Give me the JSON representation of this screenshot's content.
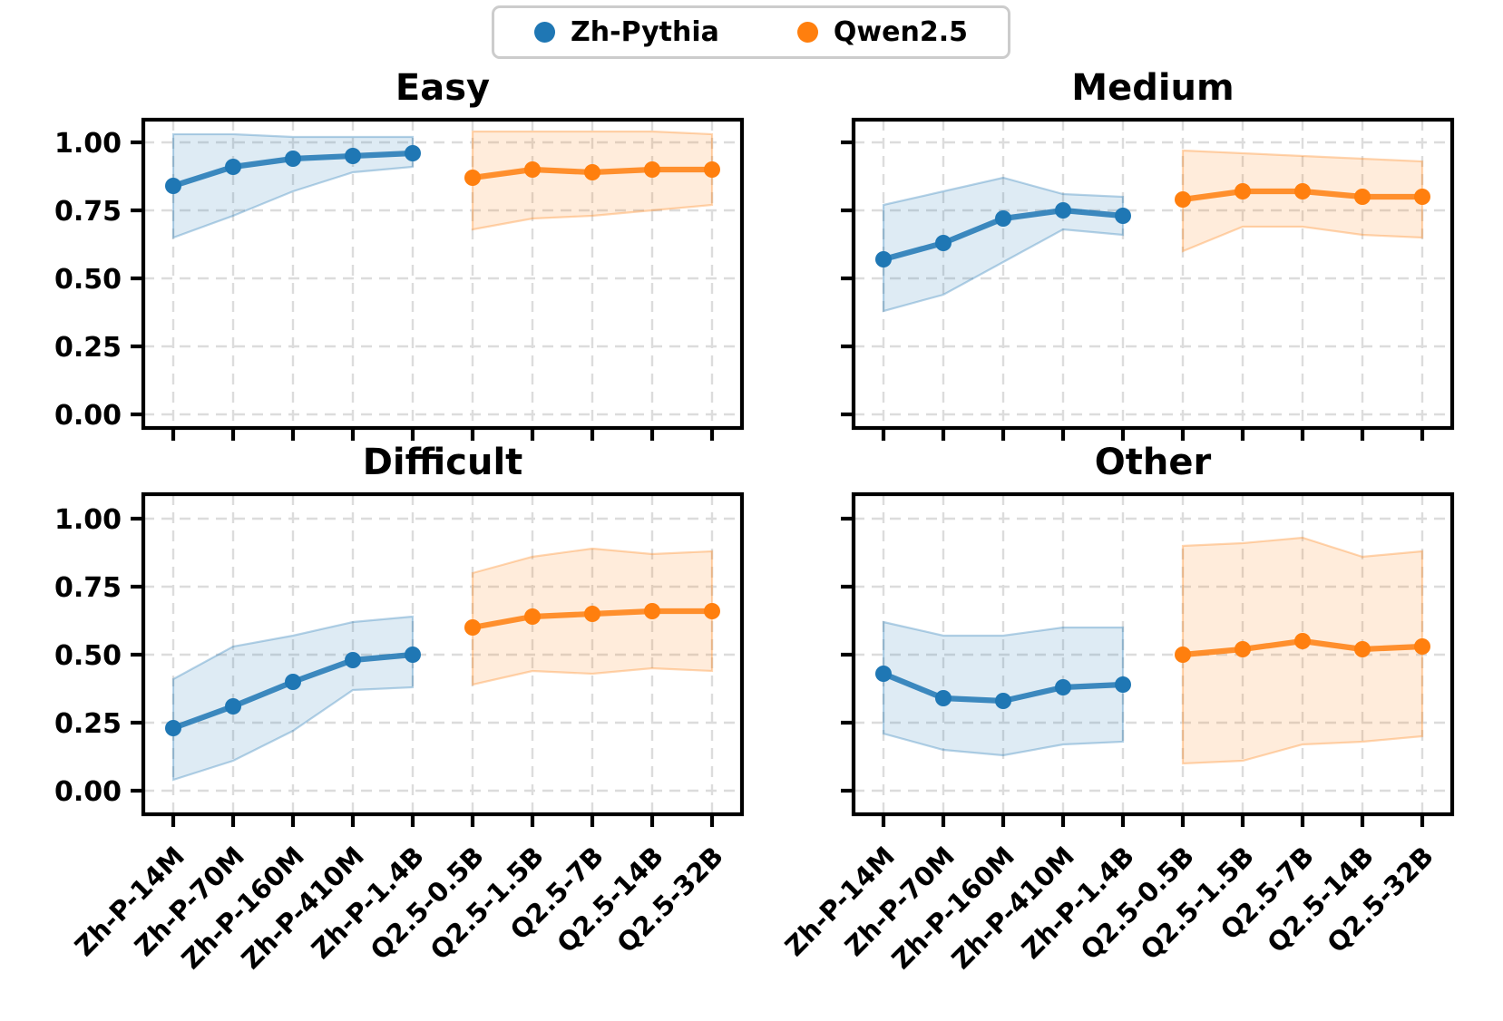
{
  "legend": {
    "items": [
      {
        "label": "Zh-Pythia",
        "color": "#1f77b4"
      },
      {
        "label": "Qwen2.5",
        "color": "#ff7f0e"
      }
    ]
  },
  "colors": {
    "blue": "#1f77b4",
    "orange": "#ff7f0e",
    "grid": "#dcdcdc",
    "spine": "#000000",
    "background": "#ffffff",
    "legend_border": "#cccccc"
  },
  "chart_data": [
    {
      "type": "line",
      "title": "Easy",
      "categories": [
        "Zh-P-14M",
        "Zh-P-70M",
        "Zh-P-160M",
        "Zh-P-410M",
        "Zh-P-1.4B",
        "Q2.5-0.5B",
        "Q2.5-1.5B",
        "Q2.5-7B",
        "Q2.5-14B",
        "Q2.5-32B"
      ],
      "ylim": [
        -0.05,
        1.08
      ],
      "yticks": {
        "values": [
          0,
          0.25,
          0.5,
          0.75,
          1.0
        ],
        "labels": [
          "0.00",
          "0.25",
          "0.50",
          "0.75",
          "1.00"
        ]
      },
      "grid": true,
      "legend_position": "figure-top",
      "series": [
        {
          "name": "Zh-Pythia",
          "color": "#1f77b4",
          "start_index": 0,
          "values": [
            0.84,
            0.91,
            0.94,
            0.95,
            0.96
          ],
          "band_lower": [
            0.65,
            0.73,
            0.82,
            0.89,
            0.91
          ],
          "band_upper": [
            1.03,
            1.03,
            1.02,
            1.02,
            1.02
          ]
        },
        {
          "name": "Qwen2.5",
          "color": "#ff7f0e",
          "start_index": 5,
          "values": [
            0.87,
            0.9,
            0.89,
            0.9,
            0.9
          ],
          "band_lower": [
            0.68,
            0.72,
            0.73,
            0.75,
            0.77
          ],
          "band_upper": [
            1.04,
            1.04,
            1.04,
            1.04,
            1.03
          ]
        }
      ]
    },
    {
      "type": "line",
      "title": "Medium",
      "categories": [
        "Zh-P-14M",
        "Zh-P-70M",
        "Zh-P-160M",
        "Zh-P-410M",
        "Zh-P-1.4B",
        "Q2.5-0.5B",
        "Q2.5-1.5B",
        "Q2.5-7B",
        "Q2.5-14B",
        "Q2.5-32B"
      ],
      "ylim": [
        -0.05,
        1.08
      ],
      "yticks": {
        "values": [
          0,
          0.25,
          0.5,
          0.75,
          1.0
        ],
        "labels": [
          "0.00",
          "0.25",
          "0.50",
          "0.75",
          "1.00"
        ]
      },
      "grid": true,
      "series": [
        {
          "name": "Zh-Pythia",
          "color": "#1f77b4",
          "start_index": 0,
          "values": [
            0.57,
            0.63,
            0.72,
            0.75,
            0.73
          ],
          "band_lower": [
            0.38,
            0.44,
            0.56,
            0.68,
            0.66
          ],
          "band_upper": [
            0.77,
            0.82,
            0.87,
            0.81,
            0.8
          ]
        },
        {
          "name": "Qwen2.5",
          "color": "#ff7f0e",
          "start_index": 5,
          "values": [
            0.79,
            0.82,
            0.82,
            0.8,
            0.8
          ],
          "band_lower": [
            0.6,
            0.69,
            0.69,
            0.66,
            0.65
          ],
          "band_upper": [
            0.97,
            0.96,
            0.95,
            0.94,
            0.93
          ]
        }
      ]
    },
    {
      "type": "line",
      "title": "Difficult",
      "categories": [
        "Zh-P-14M",
        "Zh-P-70M",
        "Zh-P-160M",
        "Zh-P-410M",
        "Zh-P-1.4B",
        "Q2.5-0.5B",
        "Q2.5-1.5B",
        "Q2.5-7B",
        "Q2.5-14B",
        "Q2.5-32B"
      ],
      "ylim": [
        -0.09,
        1.09
      ],
      "yticks": {
        "values": [
          0,
          0.25,
          0.5,
          0.75,
          1.0
        ],
        "labels": [
          "0.00",
          "0.25",
          "0.50",
          "0.75",
          "1.00"
        ]
      },
      "grid": true,
      "series": [
        {
          "name": "Zh-Pythia",
          "color": "#1f77b4",
          "start_index": 0,
          "values": [
            0.23,
            0.31,
            0.4,
            0.48,
            0.5
          ],
          "band_lower": [
            0.04,
            0.11,
            0.22,
            0.37,
            0.38
          ],
          "band_upper": [
            0.41,
            0.53,
            0.57,
            0.62,
            0.64
          ]
        },
        {
          "name": "Qwen2.5",
          "color": "#ff7f0e",
          "start_index": 5,
          "values": [
            0.6,
            0.64,
            0.65,
            0.66,
            0.66
          ],
          "band_lower": [
            0.39,
            0.44,
            0.43,
            0.45,
            0.44
          ],
          "band_upper": [
            0.8,
            0.86,
            0.89,
            0.87,
            0.88
          ]
        }
      ]
    },
    {
      "type": "line",
      "title": "Other",
      "categories": [
        "Zh-P-14M",
        "Zh-P-70M",
        "Zh-P-160M",
        "Zh-P-410M",
        "Zh-P-1.4B",
        "Q2.5-0.5B",
        "Q2.5-1.5B",
        "Q2.5-7B",
        "Q2.5-14B",
        "Q2.5-32B"
      ],
      "ylim": [
        -0.09,
        1.09
      ],
      "yticks": {
        "values": [
          0,
          0.25,
          0.5,
          0.75,
          1.0
        ],
        "labels": [
          "0.00",
          "0.25",
          "0.50",
          "0.75",
          "1.00"
        ]
      },
      "grid": true,
      "series": [
        {
          "name": "Zh-Pythia",
          "color": "#1f77b4",
          "start_index": 0,
          "values": [
            0.43,
            0.34,
            0.33,
            0.38,
            0.39
          ],
          "band_lower": [
            0.21,
            0.15,
            0.13,
            0.17,
            0.18
          ],
          "band_upper": [
            0.62,
            0.57,
            0.57,
            0.6,
            0.6
          ]
        },
        {
          "name": "Qwen2.5",
          "color": "#ff7f0e",
          "start_index": 5,
          "values": [
            0.5,
            0.52,
            0.55,
            0.52,
            0.53
          ],
          "band_lower": [
            0.1,
            0.11,
            0.17,
            0.18,
            0.2
          ],
          "band_upper": [
            0.9,
            0.91,
            0.93,
            0.86,
            0.88
          ]
        }
      ]
    }
  ]
}
